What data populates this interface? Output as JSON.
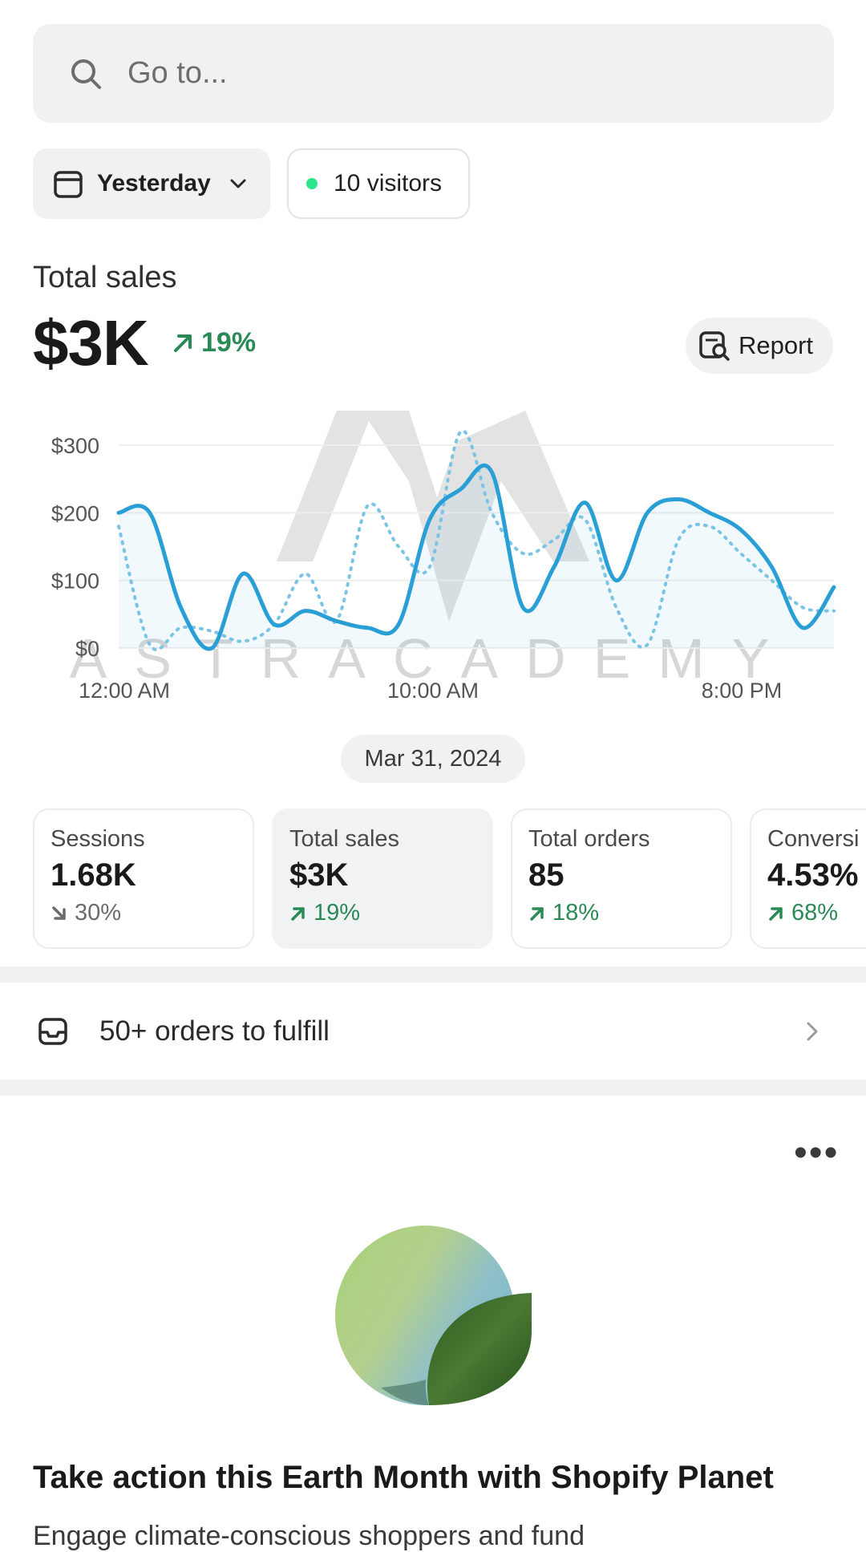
{
  "search": {
    "placeholder": "Go to..."
  },
  "filters": {
    "date_label": "Yesterday",
    "visitors_label": "10 visitors"
  },
  "summary": {
    "label": "Total sales",
    "value": "$3K",
    "change": "19%",
    "report_label": "Report"
  },
  "chart_data": {
    "type": "line",
    "title": "",
    "xlabel": "",
    "ylabel": "",
    "x_tick_labels": [
      "12:00 AM",
      "10:00 AM",
      "8:00 PM"
    ],
    "y_tick_labels": [
      "$300",
      "$200",
      "$100",
      "$0"
    ],
    "ylim": [
      0,
      300
    ],
    "grid": true,
    "x": [
      "12:00 AM",
      "1:00 AM",
      "2:00 AM",
      "3:00 AM",
      "4:00 AM",
      "5:00 AM",
      "6:00 AM",
      "7:00 AM",
      "8:00 AM",
      "9:00 AM",
      "10:00 AM",
      "11:00 AM",
      "12:00 PM",
      "1:00 PM",
      "2:00 PM",
      "3:00 PM",
      "4:00 PM",
      "5:00 PM",
      "6:00 PM",
      "7:00 PM",
      "8:00 PM",
      "9:00 PM",
      "10:00 PM",
      "11:00 PM"
    ],
    "series": [
      {
        "values": [
          200,
          200,
          60,
          0,
          110,
          35,
          55,
          40,
          30,
          35,
          190,
          235,
          260,
          60,
          120,
          215,
          100,
          200,
          220,
          200,
          175,
          120,
          30,
          90
        ]
      },
      {
        "values": [
          180,
          5,
          30,
          25,
          10,
          35,
          110,
          40,
          210,
          150,
          120,
          320,
          200,
          140,
          160,
          190,
          60,
          5,
          160,
          180,
          140,
          100,
          60,
          55
        ]
      }
    ],
    "colors": [
      "#2a9fd6",
      "#7cc4e4"
    ]
  },
  "chart_date": "Mar 31, 2024",
  "metrics": [
    {
      "title": "Sessions",
      "value": "1.68K",
      "change": "30%",
      "direction": "down"
    },
    {
      "title": "Total sales",
      "value": "$3K",
      "change": "19%",
      "direction": "up"
    },
    {
      "title": "Total orders",
      "value": "85",
      "change": "18%",
      "direction": "up"
    },
    {
      "title": "Conversi",
      "value": "4.53%",
      "change": "68%",
      "direction": "up"
    }
  ],
  "orders_to_fulfill": "50+ orders to fulfill",
  "more_menu": "•••",
  "promo": {
    "title": "Take action this Earth Month with Shopify Planet",
    "body": "Engage climate-conscious shoppers and fund"
  },
  "watermark": "ASTRACADEMY",
  "icons": [
    "search-icon",
    "calendar-icon",
    "chevron-down-icon",
    "arrow-up-right-icon",
    "report-icon",
    "arrow-down-right-icon",
    "inbox-icon",
    "chevron-right-icon"
  ],
  "accent_colors": {
    "positive": "#2a8a55",
    "line": "#2a9fd6",
    "live_dot": "#2ee58c"
  }
}
